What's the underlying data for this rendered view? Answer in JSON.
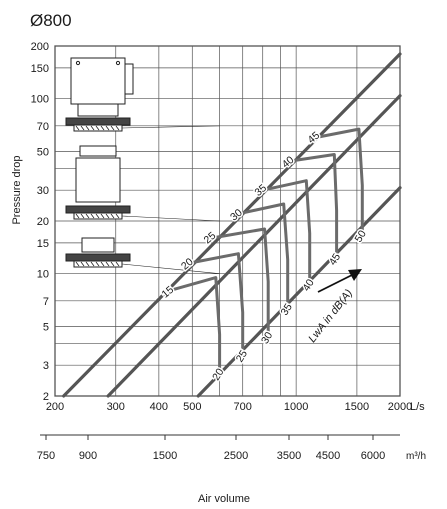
{
  "chart_data": {
    "type": "line",
    "title": "Ø800",
    "xlabel": "Air volume",
    "ylabel": "Pressure drop",
    "x_scale": "log",
    "y_scale": "log",
    "xlim": [
      200,
      2000
    ],
    "ylim": [
      2,
      200
    ],
    "grid": true,
    "x_unit": "L/s",
    "x_ticks": [
      200,
      300,
      400,
      500,
      700,
      1000,
      1500,
      2000
    ],
    "y_ticks": [
      2,
      3,
      5,
      7,
      10,
      15,
      20,
      30,
      50,
      70,
      100,
      150,
      200
    ],
    "secondary_x_unit": "m³/h",
    "secondary_x_ticks": [
      750,
      900,
      1500,
      2500,
      3500,
      4500,
      6000
    ],
    "annotation": "LwA in dB(A)",
    "series": [
      {
        "x": [
          212,
          2000
        ],
        "y": [
          2,
          180
        ]
      },
      {
        "x": [
          285,
          2000
        ],
        "y": [
          2,
          104
        ]
      },
      {
        "x": [
          520,
          2000
        ],
        "y": [
          2,
          31
        ]
      }
    ],
    "sound_curves": [
      {
        "x": [
          430,
          585,
          600,
          600
        ],
        "y": [
          8,
          9.5,
          4.5,
          2.8
        ]
      },
      {
        "x": [
          490,
          680,
          700,
          700
        ],
        "y": [
          11.5,
          13,
          6,
          3.5
        ]
      },
      {
        "x": [
          570,
          810,
          830,
          830
        ],
        "y": [
          16,
          18,
          9,
          4.5
        ]
      },
      {
        "x": [
          680,
          920,
          945,
          945
        ],
        "y": [
          22,
          25,
          12,
          6.5
        ]
      },
      {
        "x": [
          800,
          1070,
          1095,
          1095
        ],
        "y": [
          30,
          34,
          17,
          9
        ]
      },
      {
        "x": [
          960,
          1290,
          1310,
          1310
        ],
        "y": [
          44,
          48,
          23,
          12.5
        ]
      },
      {
        "x": [
          1140,
          1520,
          1555,
          1555
        ],
        "y": [
          60,
          67,
          32,
          17
        ]
      }
    ],
    "sound_labels": [
      {
        "text": "15",
        "x": 430,
        "y": 7.6
      },
      {
        "text": "20",
        "x": 490,
        "y": 11
      },
      {
        "text": "25",
        "x": 570,
        "y": 15.5
      },
      {
        "text": "30",
        "x": 680,
        "y": 21
      },
      {
        "text": "35",
        "x": 800,
        "y": 29
      },
      {
        "text": "40",
        "x": 960,
        "y": 42
      },
      {
        "text": "45",
        "x": 1140,
        "y": 58
      },
      {
        "text": "20",
        "x": 605,
        "y": 2.6
      },
      {
        "text": "25",
        "x": 708,
        "y": 3.3
      },
      {
        "text": "30",
        "x": 838,
        "y": 4.2
      },
      {
        "text": "35",
        "x": 955,
        "y": 6.1
      },
      {
        "text": "40",
        "x": 1105,
        "y": 8.4
      },
      {
        "text": "45",
        "x": 1318,
        "y": 11.8
      },
      {
        "text": "50",
        "x": 1565,
        "y": 16
      }
    ],
    "units": [
      {
        "y": 70,
        "label": "top unit"
      },
      {
        "y": 20,
        "label": "middle unit"
      },
      {
        "y": 10,
        "label": "bottom unit"
      }
    ]
  }
}
